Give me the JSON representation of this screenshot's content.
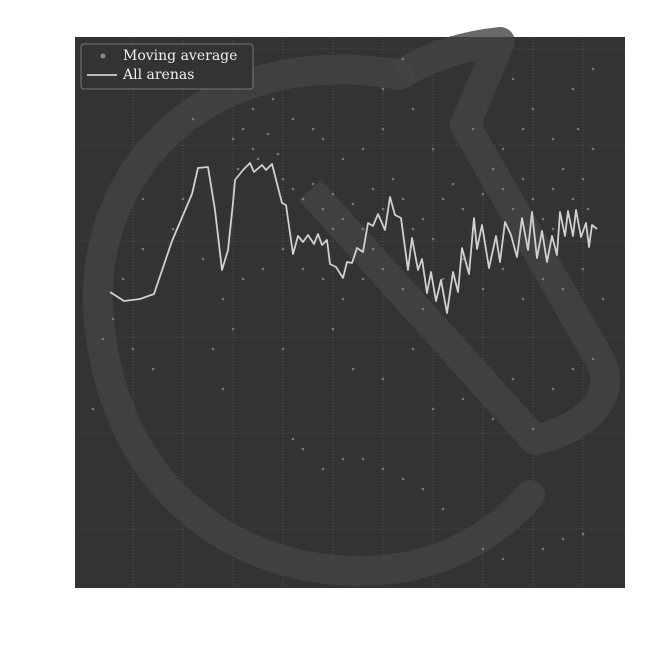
{
  "chart_data": {
    "type": "line",
    "xlim": [
      -8,
      542
    ],
    "xticks": [
      50,
      100,
      150,
      200,
      250,
      300,
      350,
      400,
      450,
      500
    ],
    "ylim": [
      -59,
      492
    ],
    "yticks": [
      0,
      96,
      192,
      288,
      384,
      480
    ],
    "grid": true,
    "legend": "upper left",
    "series": [
      {
        "name": "Moving average",
        "type": "scatter",
        "color": "#8a8a8a",
        "x": [
          150,
          160,
          170,
          155,
          175,
          185,
          195,
          200,
          210,
          220,
          230,
          240,
          250,
          260,
          270,
          280,
          290,
          300,
          310,
          320,
          330,
          340,
          350,
          360,
          370,
          380,
          390,
          400,
          410,
          420,
          430,
          440,
          450,
          460,
          470,
          480,
          490,
          500,
          510,
          495,
          470,
          440,
          420,
          300,
          280,
          260,
          240,
          120,
          100,
          90,
          60,
          40,
          20,
          30,
          50,
          70,
          130,
          140,
          150,
          200,
          210,
          220,
          240,
          260,
          280,
          300,
          320,
          340,
          360,
          400,
          420,
          460,
          480,
          500,
          250,
          270,
          300,
          330,
          350,
          380,
          410,
          430,
          450,
          470,
          490,
          510,
          520,
          500,
          480,
          460,
          440,
          420,
          400,
          380,
          360,
          340,
          320,
          300,
          280,
          260,
          240,
          220,
          200,
          180,
          160,
          140,
          170,
          190,
          210,
          230,
          450,
          490,
          510,
          430,
          300,
          320,
          110,
          60,
          10,
          350,
          390,
          330,
          250,
          290,
          470,
          505
        ],
        "values": [
          390,
          400,
          380,
          360,
          370,
          395,
          375,
          350,
          340,
          330,
          345,
          320,
          335,
          310,
          325,
          300,
          340,
          320,
          350,
          330,
          300,
          310,
          290,
          330,
          345,
          320,
          300,
          335,
          360,
          340,
          320,
          350,
          330,
          310,
          340,
          360,
          330,
          350,
          380,
          400,
          390,
          400,
          380,
          400,
          380,
          370,
          390,
          270,
          330,
          300,
          280,
          250,
          190,
          210,
          180,
          160,
          180,
          140,
          200,
          180,
          90,
          80,
          60,
          70,
          70,
          60,
          50,
          40,
          20,
          -20,
          -30,
          -20,
          -10,
          -5,
          200,
          160,
          150,
          180,
          120,
          130,
          110,
          150,
          100,
          140,
          160,
          170,
          230,
          260,
          240,
          250,
          230,
          260,
          240,
          270,
          250,
          220,
          240,
          260,
          250,
          230,
          250,
          260,
          280,
          260,
          250,
          230,
          420,
          430,
          410,
          400,
          420,
          440,
          460,
          450,
          440,
          470,
          410,
          330,
          120,
          380,
          400,
          420,
          300,
          280,
          300,
          320
        ]
      },
      {
        "name": "All arenas",
        "type": "line",
        "color": "#d0d0d0",
        "x": [
          27,
          41,
          57,
          71,
          89,
          109,
          115,
          125,
          132,
          139,
          145,
          150,
          152,
          160,
          167,
          171,
          179,
          183,
          189,
          199,
          203,
          210,
          215,
          220,
          225,
          231,
          235,
          239,
          244,
          247,
          253,
          260,
          264,
          269,
          274,
          280,
          285,
          290,
          295,
          302,
          307,
          312,
          318,
          325,
          329,
          335,
          339,
          344,
          348,
          353,
          358,
          364,
          370,
          375,
          379,
          386,
          391,
          394,
          399,
          406,
          413,
          417,
          422,
          428,
          434,
          439,
          445,
          449,
          454,
          459,
          464,
          469,
          474,
          477,
          482,
          485,
          490,
          493,
          498,
          503,
          506,
          509,
          514
        ],
        "values": [
          237,
          228,
          230,
          235,
          288,
          335,
          361,
          362,
          319,
          259,
          279,
          326,
          349,
          359,
          366,
          357,
          364,
          359,
          365,
          326,
          324,
          275,
          293,
          287,
          294,
          285,
          295,
          284,
          289,
          265,
          262,
          251,
          267,
          266,
          281,
          277,
          306,
          303,
          315,
          299,
          332,
          314,
          311,
          259,
          291,
          259,
          270,
          236,
          257,
          228,
          249,
          216,
          257,
          237,
          281,
          255,
          311,
          280,
          304,
          261,
          293,
          267,
          307,
          294,
          272,
          311,
          279,
          317,
          271,
          298,
          267,
          293,
          274,
          317,
          293,
          318,
          293,
          319,
          292,
          306,
          282,
          304,
          300
        ]
      }
    ]
  }
}
